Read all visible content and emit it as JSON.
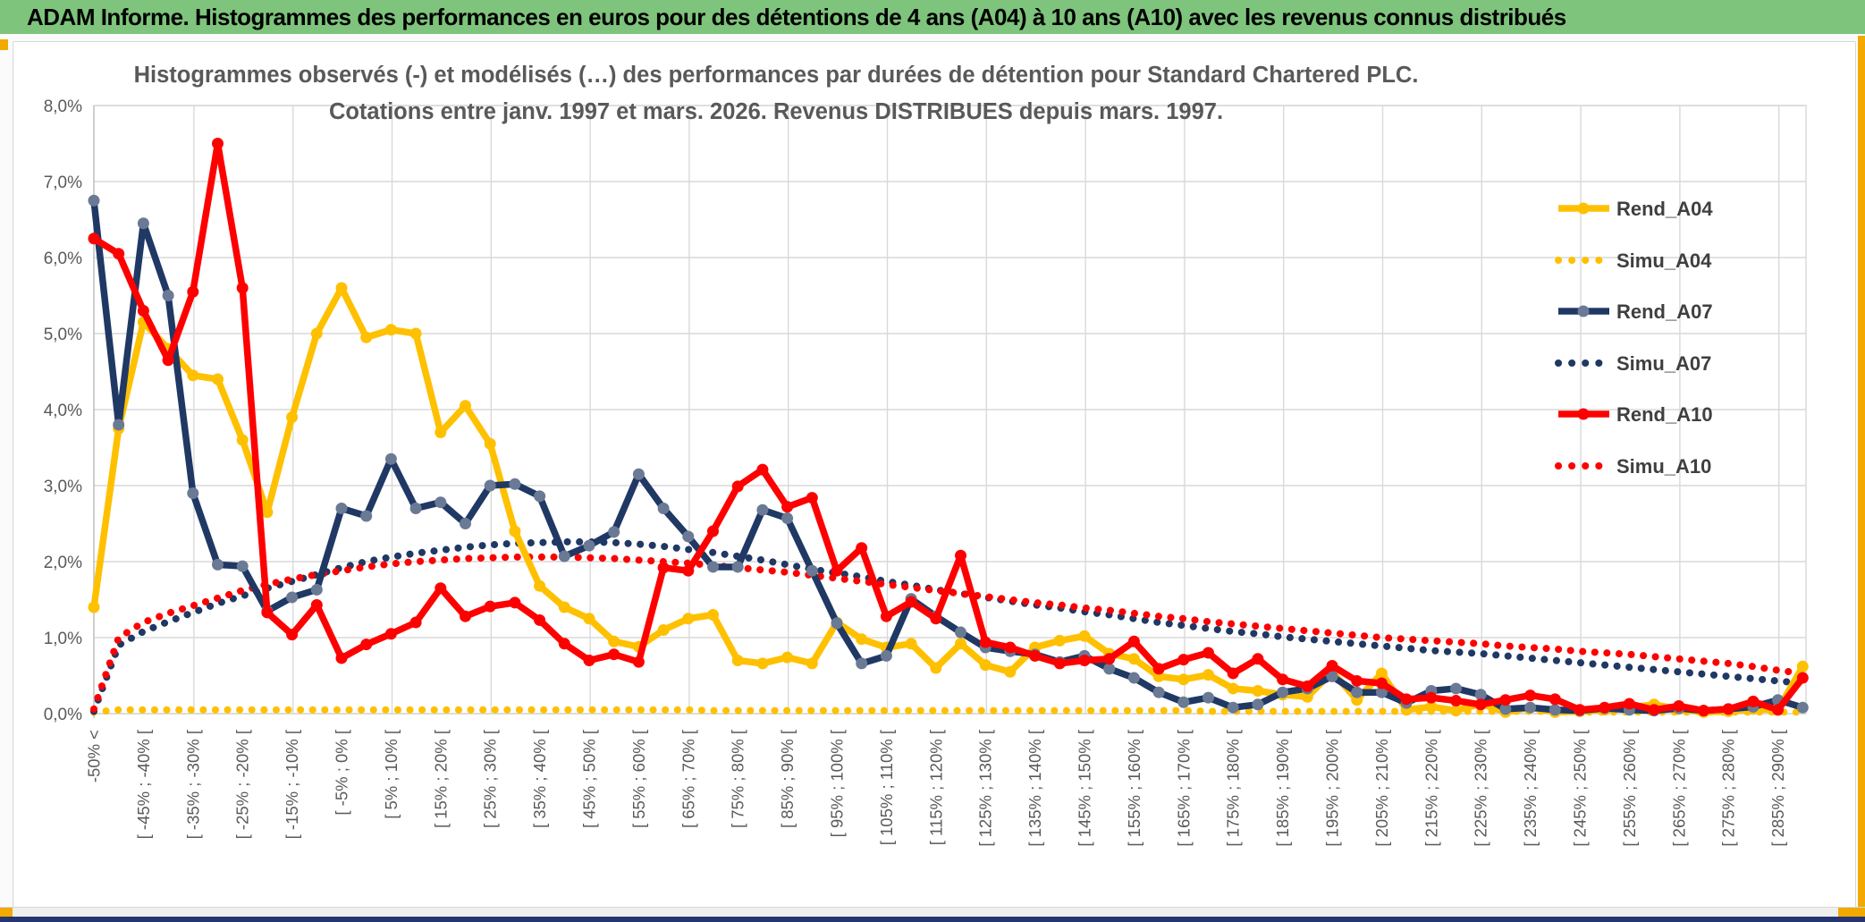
{
  "window": {
    "title": "ADAM Informe. Histogrammes des performances en euros pour des détentions de 4 ans (A04) à 10 ans (A10) avec les revenus connus distribués"
  },
  "colors": {
    "header_green": "#7EC47C",
    "gold": "#FFC000",
    "navy": "#203864",
    "red": "#FF0000",
    "navy_marker": "#6A7A95",
    "grid": "#D9D9D9",
    "axis_line": "#BFBFBF",
    "text_gray": "#595959",
    "legend_text": "#3F3F3F",
    "orange_accent": "#F2A900",
    "bottom_bar_navy": "#23366F"
  },
  "chart_data": {
    "type": "line",
    "title_line1": "Histogrammes observés (-) et modélisés (…) des performances par durées de détention pour Standard Chartered PLC.",
    "title_line2": "Cotations entre janv. 1997 et mars. 2026. Revenus DISTRIBUES depuis mars. 1997.",
    "ylim": [
      0,
      8
    ],
    "ytick_labels": [
      "0,0%",
      "1,0%",
      "2,0%",
      "3,0%",
      "4,0%",
      "5,0%",
      "6,0%",
      "7,0%",
      "8,0%"
    ],
    "grid": true,
    "legend_position": "right",
    "x_bin_count": 70,
    "xtick_every_other_bin": true,
    "xtick_labels": [
      "-50% <",
      "[ -45% ; -40% [",
      "[ -35% ; -30% [",
      "[ -25% ; -20% [",
      "[ -15% ; -10% [",
      "[ -5% ; 0% [",
      "[ 5% ; 10% [",
      "[ 15% ; 20% [",
      "[ 25% ; 30% [",
      "[ 35% ; 40% [",
      "[ 45% ; 50% [",
      "[ 55% ; 60% [",
      "[ 65% ; 70% [",
      "[ 75% ; 80% [",
      "[ 85% ; 90% [",
      "[ 95% ; 100% [",
      "[ 105% ; 110% [",
      "[ 115% ; 120% [",
      "[ 125% ; 130% [",
      "[ 135% ; 140% [",
      "[ 145% ; 150% [",
      "[ 155% ; 160% [",
      "[ 165% ; 170% [",
      "[ 175% ; 180% [",
      "[ 185% ; 190% [",
      "[ 195% ; 200% [",
      "[ 205% ; 210% [",
      "[ 215% ; 220% [",
      "[ 225% ; 230% [",
      "[ 235% ; 240% [",
      "[ 245% ; 250% [",
      "[ 255% ; 260% [",
      "[ 265% ; 270% [",
      "[ 275% ; 280% [",
      "[ 285% ; 290% ["
    ],
    "series": [
      {
        "name": "Rend_A04",
        "style": "solid",
        "color": "#FFC000",
        "marker": "#FFC000",
        "values": [
          1.4,
          3.75,
          5.15,
          4.8,
          4.45,
          4.4,
          3.6,
          2.65,
          3.9,
          5.0,
          5.6,
          4.95,
          5.05,
          5.0,
          3.7,
          4.05,
          3.55,
          2.4,
          1.68,
          1.4,
          1.25,
          0.95,
          0.88,
          1.1,
          1.25,
          1.3,
          0.7,
          0.66,
          0.74,
          0.66,
          1.2,
          0.98,
          0.87,
          0.92,
          0.6,
          0.92,
          0.64,
          0.55,
          0.87,
          0.96,
          1.02,
          0.79,
          0.72,
          0.49,
          0.45,
          0.51,
          0.33,
          0.3,
          0.25,
          0.22,
          0.55,
          0.18,
          0.53,
          0.05,
          0.09,
          0.04,
          0.13,
          0.02,
          0.08,
          0.02,
          0.03,
          0.05,
          0.08,
          0.12,
          0.06,
          0.02,
          0.03,
          0.06,
          0.05,
          0.62
        ]
      },
      {
        "name": "Simu_A04",
        "style": "dotted",
        "color": "#FFC000",
        "values": [
          0.02,
          0.05,
          0.05,
          0.05,
          0.05,
          0.05,
          0.05,
          0.05,
          0.05,
          0.05,
          0.05,
          0.05,
          0.05,
          0.05,
          0.05,
          0.05,
          0.05,
          0.05,
          0.05,
          0.05,
          0.05,
          0.05,
          0.05,
          0.05,
          0.05,
          0.04,
          0.04,
          0.04,
          0.04,
          0.04,
          0.04,
          0.04,
          0.04,
          0.04,
          0.04,
          0.04,
          0.04,
          0.04,
          0.04,
          0.04,
          0.04,
          0.04,
          0.04,
          0.04,
          0.04,
          0.03,
          0.03,
          0.03,
          0.03,
          0.03,
          0.03,
          0.03,
          0.03,
          0.03,
          0.03,
          0.03,
          0.03,
          0.03,
          0.03,
          0.03,
          0.02,
          0.02,
          0.02,
          0.02,
          0.02,
          0.02,
          0.02,
          0.02,
          0.02,
          0.02
        ]
      },
      {
        "name": "Rend_A07",
        "style": "solid",
        "color": "#203864",
        "marker": "#6A7A95",
        "values": [
          6.75,
          3.8,
          6.45,
          5.5,
          2.9,
          1.96,
          1.94,
          1.35,
          1.53,
          1.63,
          2.7,
          2.6,
          3.35,
          2.7,
          2.78,
          2.5,
          3.0,
          3.02,
          2.86,
          2.07,
          2.21,
          2.39,
          3.15,
          2.7,
          2.33,
          1.93,
          1.93,
          2.68,
          2.57,
          1.88,
          1.19,
          0.66,
          0.76,
          1.51,
          1.28,
          1.07,
          0.87,
          0.82,
          0.78,
          0.68,
          0.76,
          0.59,
          0.47,
          0.28,
          0.15,
          0.21,
          0.08,
          0.12,
          0.28,
          0.33,
          0.49,
          0.28,
          0.28,
          0.14,
          0.3,
          0.33,
          0.25,
          0.06,
          0.08,
          0.05,
          0.04,
          0.07,
          0.05,
          0.04,
          0.07,
          0.04,
          0.06,
          0.09,
          0.18,
          0.08
        ]
      },
      {
        "name": "Simu_A07",
        "style": "dotted",
        "color": "#203864",
        "values": [
          0.03,
          0.9,
          1.08,
          1.21,
          1.33,
          1.45,
          1.55,
          1.65,
          1.74,
          1.83,
          1.92,
          2.0,
          2.06,
          2.11,
          2.15,
          2.19,
          2.22,
          2.24,
          2.25,
          2.26,
          2.26,
          2.25,
          2.23,
          2.2,
          2.16,
          2.12,
          2.07,
          2.02,
          1.96,
          1.9,
          1.85,
          1.8,
          1.74,
          1.69,
          1.63,
          1.58,
          1.53,
          1.48,
          1.43,
          1.39,
          1.34,
          1.3,
          1.25,
          1.2,
          1.16,
          1.12,
          1.08,
          1.05,
          1.01,
          0.98,
          0.95,
          0.92,
          0.89,
          0.86,
          0.83,
          0.81,
          0.79,
          0.76,
          0.73,
          0.7,
          0.67,
          0.64,
          0.61,
          0.58,
          0.55,
          0.52,
          0.49,
          0.46,
          0.43,
          0.4
        ]
      },
      {
        "name": "Rend_A10",
        "style": "solid",
        "color": "#FF0000",
        "marker": "#FF0000",
        "values": [
          6.25,
          6.05,
          5.3,
          4.65,
          5.55,
          7.5,
          5.6,
          1.33,
          1.04,
          1.43,
          0.73,
          0.91,
          1.05,
          1.2,
          1.65,
          1.28,
          1.41,
          1.46,
          1.23,
          0.92,
          0.7,
          0.78,
          0.68,
          1.92,
          1.88,
          2.4,
          2.99,
          3.21,
          2.72,
          2.84,
          1.88,
          2.18,
          1.28,
          1.47,
          1.25,
          2.08,
          0.94,
          0.87,
          0.76,
          0.66,
          0.7,
          0.72,
          0.95,
          0.59,
          0.71,
          0.8,
          0.53,
          0.72,
          0.45,
          0.36,
          0.63,
          0.43,
          0.4,
          0.19,
          0.21,
          0.17,
          0.12,
          0.18,
          0.24,
          0.19,
          0.05,
          0.08,
          0.13,
          0.05,
          0.1,
          0.04,
          0.06,
          0.16,
          0.05,
          0.47
        ]
      },
      {
        "name": "Simu_A10",
        "style": "dotted",
        "color": "#FF0000",
        "values": [
          0.06,
          1.0,
          1.2,
          1.32,
          1.42,
          1.52,
          1.62,
          1.7,
          1.77,
          1.83,
          1.88,
          1.93,
          1.97,
          2.0,
          2.02,
          2.04,
          2.05,
          2.06,
          2.06,
          2.06,
          2.05,
          2.04,
          2.02,
          2.0,
          1.98,
          1.95,
          1.92,
          1.89,
          1.86,
          1.82,
          1.78,
          1.74,
          1.7,
          1.66,
          1.62,
          1.58,
          1.54,
          1.5,
          1.46,
          1.43,
          1.39,
          1.36,
          1.32,
          1.28,
          1.25,
          1.21,
          1.18,
          1.15,
          1.12,
          1.09,
          1.06,
          1.03,
          1.0,
          0.98,
          0.96,
          0.94,
          0.92,
          0.89,
          0.87,
          0.85,
          0.82,
          0.8,
          0.78,
          0.75,
          0.72,
          0.69,
          0.66,
          0.62,
          0.57,
          0.53
        ]
      }
    ],
    "legend": [
      "Rend_A04",
      "Simu_A04",
      "Rend_A07",
      "Simu_A07",
      "Rend_A10",
      "Simu_A10"
    ]
  }
}
